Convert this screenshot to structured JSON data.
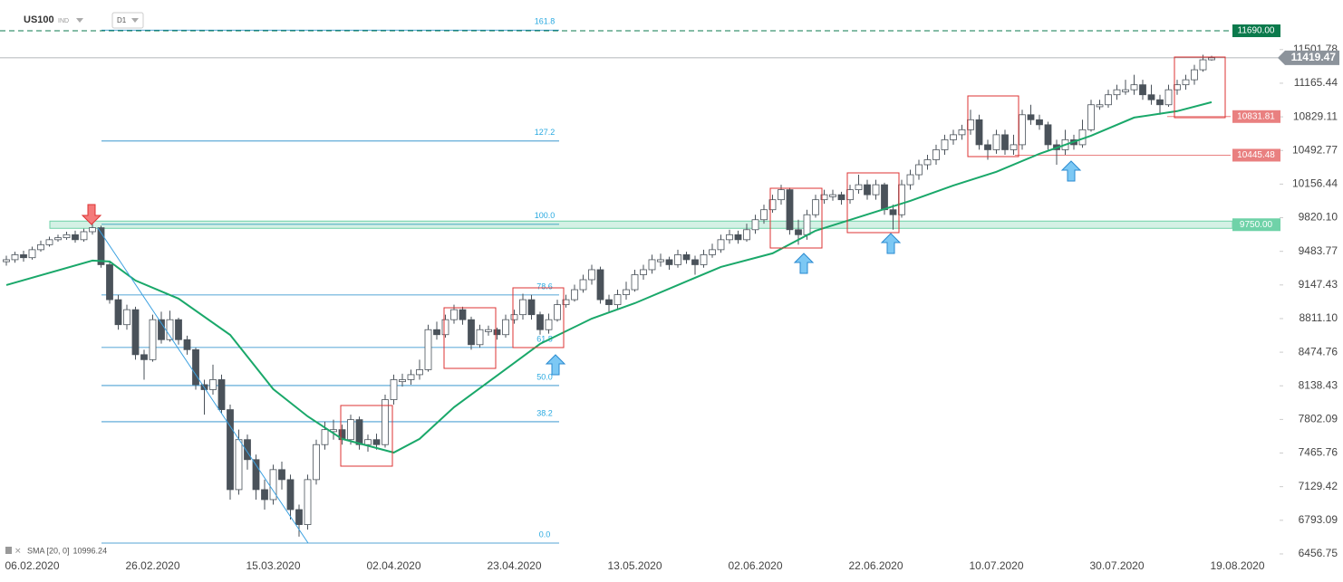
{
  "chart_data": {
    "type": "candlestick",
    "symbol": "US100",
    "market": "IND",
    "timeframe": "D1",
    "categories": [
      null,
      null,
      null,
      "06.02.2020",
      null,
      null,
      null,
      null,
      null,
      null,
      null,
      null,
      null,
      null,
      null,
      null,
      null,
      "26.02.2020",
      null,
      null,
      null,
      null,
      null,
      null,
      null,
      null,
      null,
      null,
      null,
      null,
      null,
      "15.03.2020",
      null,
      null,
      null,
      null,
      null,
      null,
      null,
      null,
      null,
      null,
      null,
      null,
      null,
      "02.04.2020",
      null,
      null,
      null,
      null,
      null,
      null,
      null,
      null,
      null,
      null,
      null,
      null,
      null,
      "23.04.2020",
      null,
      null,
      null,
      null,
      null,
      null,
      null,
      null,
      null,
      null,
      null,
      null,
      null,
      "13.05.2020",
      null,
      null,
      null,
      null,
      null,
      null,
      null,
      null,
      null,
      null,
      null,
      null,
      null,
      "02.06.2020",
      null,
      null,
      null,
      null,
      null,
      null,
      null,
      null,
      null,
      null,
      null,
      null,
      null,
      "22.06.2020",
      null,
      null,
      null,
      null,
      null,
      null,
      null,
      null,
      null,
      null,
      null,
      null,
      null,
      "10.07.2020",
      null,
      null,
      null,
      null,
      null,
      null,
      null,
      null,
      null,
      null,
      null,
      null,
      null,
      "30.07.2020",
      null,
      null,
      null,
      null,
      null,
      null,
      null,
      null,
      null,
      null,
      null,
      null,
      null,
      "19.08.2020"
    ],
    "open": [
      9380,
      9400,
      9450,
      9420,
      9500,
      9550,
      9600,
      9620,
      9650,
      9600,
      9680,
      9720,
      9350,
      9000,
      8750,
      8900,
      8450,
      8400,
      8800,
      8600,
      8800,
      8600,
      8500,
      8150,
      8100,
      8200,
      7900,
      7100,
      7600,
      7400,
      7100,
      7000,
      7300,
      7200,
      6900,
      6750,
      7200,
      7550,
      7680,
      7700,
      7600,
      7800,
      7550,
      7600,
      7550,
      8000,
      8180,
      8200,
      8250,
      8300,
      8700,
      8650,
      8800,
      8900,
      8800,
      8550,
      8680,
      8700,
      8650,
      8800,
      8850,
      9000,
      8850,
      8700,
      8800,
      8950,
      9000,
      9100,
      9200,
      9300,
      9000,
      8950,
      9050,
      9100,
      9250,
      9300,
      9380,
      9400,
      9350,
      9450,
      9400,
      9350,
      9450,
      9500,
      9600,
      9650,
      9600,
      9700,
      9800,
      9900,
      10000,
      10100,
      9700,
      9650,
      9850,
      10000,
      10030,
      10050,
      10000,
      10100,
      10150,
      10050,
      10150,
      9900,
      9850,
      10150,
      10250,
      10350,
      10400,
      10500,
      10600,
      10650,
      10700,
      10800,
      10550,
      10500,
      10650,
      10500,
      10550,
      10850,
      10800,
      10750,
      10550,
      10500,
      10600,
      10550,
      10700,
      10930,
      10950,
      11050,
      11080,
      11100,
      11150,
      11050,
      11000,
      10950,
      11100,
      11150,
      11200,
      11300,
      11400,
      null,
      null,
      null
    ],
    "high": [
      9440,
      9480,
      9490,
      9530,
      9590,
      9630,
      9650,
      9680,
      9690,
      9710,
      9760,
      9740,
      9380,
      9050,
      8950,
      8930,
      8500,
      8850,
      8880,
      8890,
      8820,
      8640,
      8520,
      8200,
      8350,
      8250,
      7950,
      7700,
      7650,
      7450,
      7200,
      7350,
      7380,
      7250,
      6950,
      7250,
      7600,
      7780,
      7800,
      7750,
      7850,
      7830,
      7650,
      7660,
      8050,
      8250,
      8260,
      8300,
      8400,
      8750,
      8780,
      8850,
      8950,
      8930,
      8830,
      8750,
      8740,
      8720,
      8850,
      8900,
      9060,
      9050,
      8880,
      8860,
      9000,
      9050,
      9150,
      9250,
      9350,
      9330,
      9050,
      9100,
      9180,
      9300,
      9350,
      9450,
      9460,
      9430,
      9500,
      9480,
      9440,
      9500,
      9560,
      9650,
      9700,
      9690,
      9760,
      9850,
      9950,
      10050,
      10150,
      10120,
      9800,
      9900,
      10050,
      10100,
      10100,
      10080,
      10150,
      10250,
      10200,
      10200,
      10170,
      9950,
      10200,
      10300,
      10400,
      10450,
      10550,
      10650,
      10700,
      10750,
      10900,
      10850,
      10600,
      10700,
      10700,
      10650,
      10900,
      10950,
      10850,
      10780,
      10600,
      10700,
      10650,
      10800,
      11000,
      11000,
      11100,
      11150,
      11200,
      11250,
      11200,
      11150,
      11050,
      11150,
      11200,
      11250,
      11350,
      11450,
      11440,
      null,
      null,
      null
    ],
    "low": [
      9340,
      9370,
      9380,
      9400,
      9480,
      9530,
      9580,
      9600,
      9570,
      9580,
      9650,
      9320,
      8960,
      8700,
      8700,
      8400,
      8200,
      8380,
      8560,
      8580,
      8550,
      8450,
      8100,
      7850,
      8050,
      7860,
      7000,
      7050,
      7300,
      7000,
      6900,
      6950,
      7100,
      6800,
      6630,
      6700,
      7150,
      7500,
      7600,
      7550,
      7550,
      7500,
      7480,
      7500,
      7520,
      7950,
      8130,
      8150,
      8200,
      8280,
      8600,
      8620,
      8760,
      8750,
      8500,
      8520,
      8640,
      8600,
      8620,
      8760,
      8800,
      8800,
      8650,
      8660,
      8780,
      8920,
      8980,
      9070,
      9150,
      8960,
      8880,
      8900,
      9000,
      9080,
      9200,
      9260,
      9330,
      9300,
      9320,
      9360,
      9250,
      9320,
      9420,
      9470,
      9560,
      9560,
      9580,
      9660,
      9760,
      9870,
      9950,
      9650,
      9550,
      9600,
      9820,
      9960,
      9990,
      9950,
      9960,
      10060,
      10000,
      10000,
      9850,
      9700,
      9820,
      10100,
      10200,
      10300,
      10350,
      10450,
      10550,
      10600,
      10650,
      10500,
      10400,
      10460,
      10450,
      10450,
      10500,
      10750,
      10700,
      10500,
      10350,
      10450,
      10500,
      10520,
      10680,
      10900,
      10920,
      11000,
      11050,
      11050,
      11000,
      10950,
      10850,
      10930,
      11050,
      11100,
      11150,
      11280,
      11390,
      null,
      null,
      null
    ],
    "close": [
      9400,
      9450,
      9420,
      9500,
      9550,
      9600,
      9620,
      9650,
      9600,
      9680,
      9720,
      9350,
      9000,
      8750,
      8900,
      8450,
      8400,
      8800,
      8600,
      8800,
      8600,
      8500,
      8150,
      8100,
      8200,
      7900,
      7100,
      7600,
      7400,
      7100,
      7000,
      7300,
      7200,
      6900,
      6750,
      7200,
      7550,
      7700,
      7700,
      7600,
      7800,
      7550,
      7600,
      7550,
      8000,
      8200,
      8200,
      8250,
      8300,
      8700,
      8650,
      8800,
      8900,
      8800,
      8550,
      8700,
      8700,
      8650,
      8800,
      8850,
      9000,
      8850,
      8700,
      8800,
      8950,
      9000,
      9100,
      9200,
      9300,
      9000,
      8950,
      9050,
      9100,
      9250,
      9300,
      9400,
      9400,
      9350,
      9450,
      9400,
      9350,
      9450,
      9500,
      9600,
      9650,
      9600,
      9700,
      9800,
      9900,
      10000,
      10100,
      9700,
      9650,
      9850,
      10000,
      10050,
      10050,
      10000,
      10100,
      10150,
      10050,
      10150,
      9900,
      9850,
      10150,
      10250,
      10350,
      10400,
      10500,
      10600,
      10650,
      10700,
      10800,
      10550,
      10500,
      10650,
      10500,
      10550,
      10850,
      10800,
      10750,
      10550,
      10500,
      10600,
      10550,
      10700,
      10950,
      10950,
      11050,
      11100,
      11100,
      11150,
      11050,
      11000,
      10950,
      11100,
      11150,
      11200,
      11300,
      11400,
      11419.47,
      null,
      null,
      null
    ],
    "bull_color": "#ffffff",
    "bear_color": "#4a525a",
    "ylim": [
      6384,
      11998
    ],
    "yticks": [
      11501.78,
      11165.44,
      10829.11,
      10492.77,
      10156.44,
      {
        "value": 9820.1,
        "label": "9820.10"
      },
      9483.77,
      9147.43,
      {
        "value": 8811.1,
        "label": "8811.10"
      },
      8474.76,
      8138.43,
      7802.09,
      7465.76,
      7129.42,
      6793.09,
      6456.75
    ],
    "sma": {
      "name": "SMA [20, 0]",
      "value": 10996.24,
      "color": "#1aa86a",
      "x": [
        0,
        10,
        12,
        15,
        20,
        26,
        31,
        35,
        39,
        45,
        48,
        52,
        57,
        62,
        68,
        73,
        78,
        83,
        89,
        94,
        99,
        105,
        110,
        115,
        120,
        126,
        131,
        136,
        140
      ],
      "values": [
        9147,
        9391,
        9382,
        9192,
        9011,
        8648,
        8105,
        7833,
        7607,
        7471,
        7607,
        7924,
        8241,
        8558,
        8811,
        8965,
        9147,
        9328,
        9464,
        9690,
        9826,
        9989,
        10143,
        10279,
        10460,
        10641,
        10822,
        10886,
        10976
      ]
    },
    "fib_levels": [
      {
        "label": "161.8",
        "value": 11697
      },
      {
        "label": "127.2",
        "value": 10587
      },
      {
        "label": "100.0",
        "value": 9754
      },
      {
        "label": "78.6",
        "value": 9047
      },
      {
        "label": "61.8",
        "value": 8522
      },
      {
        "label": "50.0",
        "value": 8141
      },
      {
        "label": "38.2",
        "value": 7779
      },
      {
        "label": "0.0",
        "value": 6565
      }
    ],
    "fib_color": "#1e88c8",
    "levels": [
      {
        "value": 11690,
        "label": "11690.00",
        "color": "#0b7a4c",
        "style": "dashed"
      },
      {
        "value": 10831.81,
        "color": "#e98080",
        "style": "solid"
      },
      {
        "value": 10445.48,
        "color": "#e98080",
        "style": "solid"
      },
      {
        "value": 9750,
        "label": "9750.00",
        "color": "#6fd2a8",
        "style": "zone"
      }
    ],
    "current_price": 11419.47
  }
}
